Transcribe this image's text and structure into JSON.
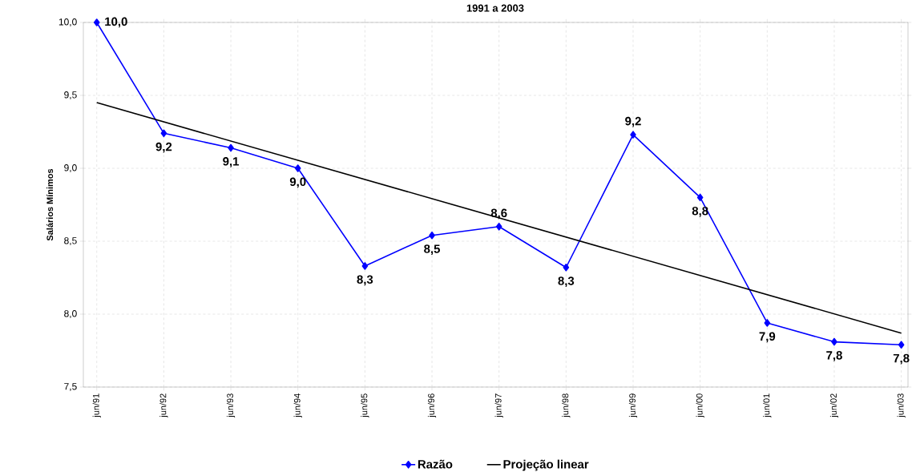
{
  "chart_data": {
    "type": "line",
    "title": "1991 a 2003",
    "ylabel": "Salários Mínimos",
    "categories": [
      "jun/91",
      "jun/92",
      "jun/93",
      "jun/94",
      "jun/95",
      "jun/96",
      "jun/97",
      "jun/98",
      "jun/99",
      "jun/00",
      "jun/01",
      "jun/02",
      "jun/03"
    ],
    "series": [
      {
        "name": "Razão",
        "color": "#0000ff",
        "marker": "diamond",
        "values": [
          10.0,
          9.24,
          9.14,
          9.0,
          8.33,
          8.54,
          8.6,
          8.32,
          9.23,
          8.8,
          7.94,
          7.81,
          7.79
        ],
        "value_labels": [
          "10,0",
          "9,2",
          "9,1",
          "9,0",
          "8,3",
          "8,5",
          "8,6",
          "8,3",
          "9,2",
          "8,8",
          "7,9",
          "7,8",
          "7,8"
        ]
      },
      {
        "name": "Projeção linear",
        "color": "#000000",
        "marker": "none",
        "values": [
          9.45,
          null,
          null,
          null,
          null,
          null,
          null,
          null,
          null,
          null,
          null,
          null,
          7.87
        ]
      }
    ],
    "ylim": [
      7.5,
      10.0
    ],
    "yticks": [
      {
        "value": 7.5,
        "label": "7,5"
      },
      {
        "value": 8.0,
        "label": "8,0"
      },
      {
        "value": 8.5,
        "label": "8,5"
      },
      {
        "value": 9.0,
        "label": "9,0"
      },
      {
        "value": 9.5,
        "label": "9,5"
      },
      {
        "value": 10.0,
        "label": "10,0"
      }
    ],
    "grid": true,
    "legend": "bottom",
    "line_style": "solid"
  }
}
